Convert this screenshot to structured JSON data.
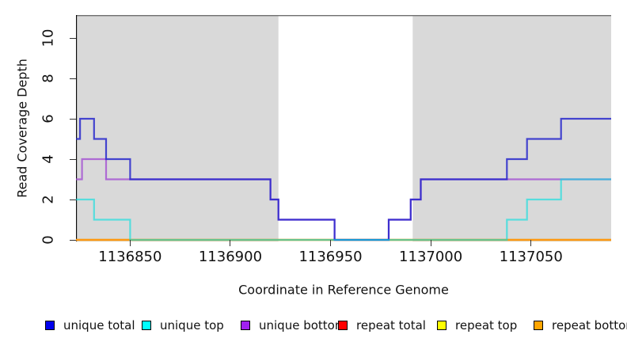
{
  "chart_data": {
    "type": "line",
    "subtype": "step",
    "title": "",
    "xlabel": "Coordinate in Reference Genome",
    "ylabel": "Read Coverage Depth",
    "xlim": [
      1136823,
      1137090
    ],
    "ylim": [
      0,
      11.1
    ],
    "grid": false,
    "legend_position": "bottom",
    "x_tick_values": [
      1136850,
      1136900,
      1136950,
      1137000,
      1137050
    ],
    "x_tick_labels": [
      "1136850",
      "1136900",
      "1136950",
      "1137000",
      "1137050"
    ],
    "y_tick_values": [
      0,
      2,
      4,
      6,
      8,
      10
    ],
    "y_tick_labels": [
      "0",
      "2",
      "4",
      "6",
      "8",
      "10"
    ],
    "shaded_region_color": "#D9D9D9",
    "shaded_regions": [
      {
        "from": 1136823,
        "to": 1136924
      },
      {
        "from": 1136991,
        "to": 1137090
      }
    ],
    "series": [
      {
        "name": "unique total",
        "legend_color": "#0000EE",
        "line_color": "#2222CC",
        "opacity": 0.82,
        "steps": [
          [
            1136823,
            5
          ],
          [
            1136825,
            6
          ],
          [
            1136832,
            5
          ],
          [
            1136838,
            4
          ],
          [
            1136850,
            3
          ],
          [
            1136920,
            2
          ],
          [
            1136924,
            1
          ],
          [
            1136952,
            0
          ],
          [
            1136979,
            1
          ],
          [
            1136990,
            2
          ],
          [
            1136995,
            3
          ],
          [
            1137038,
            4
          ],
          [
            1137048,
            5
          ],
          [
            1137065,
            6
          ]
        ]
      },
      {
        "name": "unique top",
        "legend_color": "#00FFFF",
        "line_color": "#00E0E0",
        "opacity": 0.6,
        "steps": [
          [
            1136823,
            2
          ],
          [
            1136832,
            1
          ],
          [
            1136850,
            0
          ],
          [
            1137038,
            1
          ],
          [
            1137048,
            2
          ],
          [
            1137065,
            3
          ]
        ]
      },
      {
        "name": "unique bottom",
        "legend_color": "#A020F0",
        "line_color": "#A34FD2",
        "opacity": 0.8,
        "steps": [
          [
            1136823,
            3
          ],
          [
            1136826,
            4
          ],
          [
            1136838,
            3
          ],
          [
            1136920,
            2
          ],
          [
            1136924,
            1
          ],
          [
            1136952,
            0
          ],
          [
            1136979,
            1
          ],
          [
            1136990,
            2
          ],
          [
            1136995,
            3
          ]
        ]
      },
      {
        "name": "repeat total",
        "legend_color": "#FF0000",
        "line_color": "#CC2222",
        "opacity": 1,
        "steps": [
          [
            1136823,
            0
          ]
        ]
      },
      {
        "name": "repeat top",
        "legend_color": "#FFFF00",
        "line_color": "#F0F000",
        "opacity": 1,
        "steps": [
          [
            1136823,
            0
          ]
        ]
      },
      {
        "name": "repeat bottom",
        "legend_color": "#FFA500",
        "line_color": "#FF9912",
        "opacity": 1,
        "steps": [
          [
            1136823,
            0
          ]
        ]
      }
    ]
  }
}
